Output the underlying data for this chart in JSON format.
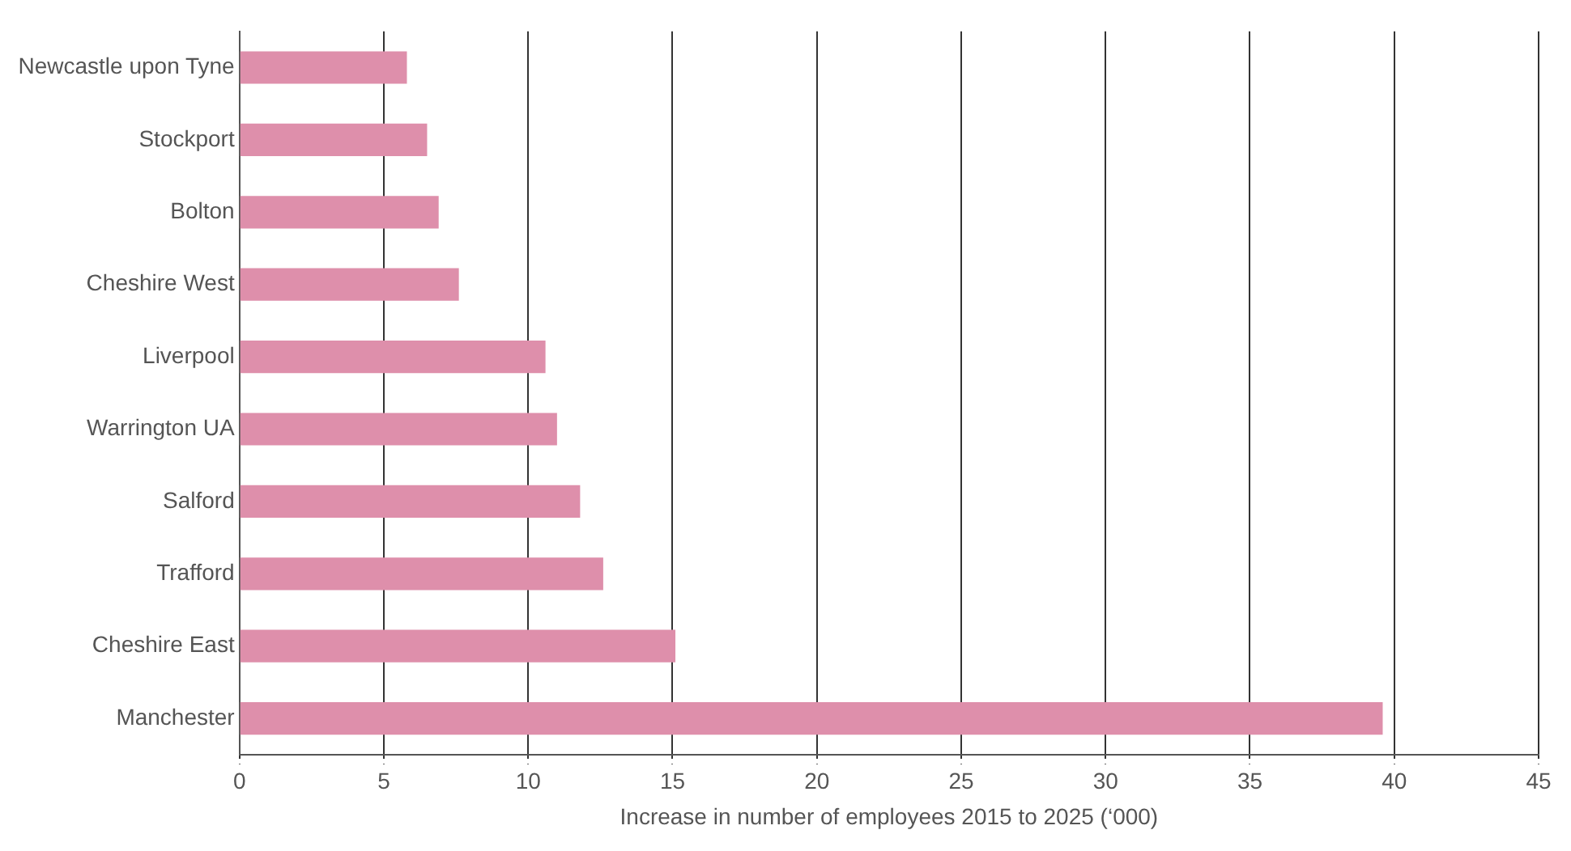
{
  "chart_data": {
    "type": "bar",
    "orientation": "horizontal",
    "xlabel": "Increase in number of employees 2015 to 2025 (‘000)",
    "categories": [
      "Newcastle upon Tyne",
      "Stockport",
      "Bolton",
      "Cheshire West",
      "Liverpool",
      "Warrington UA",
      "Salford",
      "Trafford",
      "Cheshire East",
      "Manchester"
    ],
    "values": [
      5.8,
      6.5,
      6.9,
      7.6,
      10.6,
      11.0,
      11.8,
      12.6,
      15.1,
      39.6
    ],
    "color": "#de8fab",
    "xlim": [
      0,
      45
    ],
    "xticks": [
      0,
      5,
      10,
      15,
      20,
      25,
      30,
      35,
      40,
      45
    ],
    "grid": "x",
    "legend": false
  }
}
